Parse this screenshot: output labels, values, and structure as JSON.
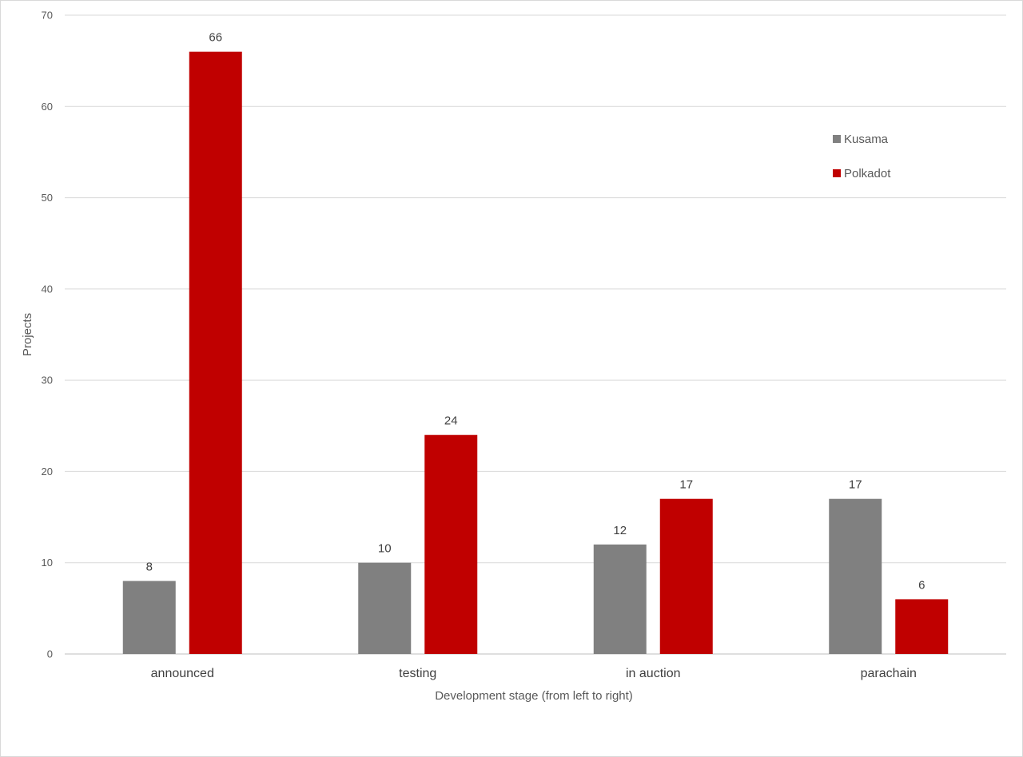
{
  "chart_data": {
    "type": "bar",
    "categories": [
      "announced",
      "testing",
      "in auction",
      "parachain"
    ],
    "series": [
      {
        "name": "Kusama",
        "color": "#808080",
        "values": [
          8,
          10,
          12,
          17
        ]
      },
      {
        "name": "Polkadot",
        "color": "#c00000",
        "values": [
          66,
          24,
          17,
          6
        ]
      }
    ],
    "xlabel": "Development stage (from left to right)",
    "ylabel": "Projects",
    "ylim": [
      0,
      70
    ],
    "yticks": [
      0,
      10,
      20,
      30,
      40,
      50,
      60,
      70
    ],
    "grid": true,
    "legend_position": "top-right",
    "data_labels": true
  }
}
